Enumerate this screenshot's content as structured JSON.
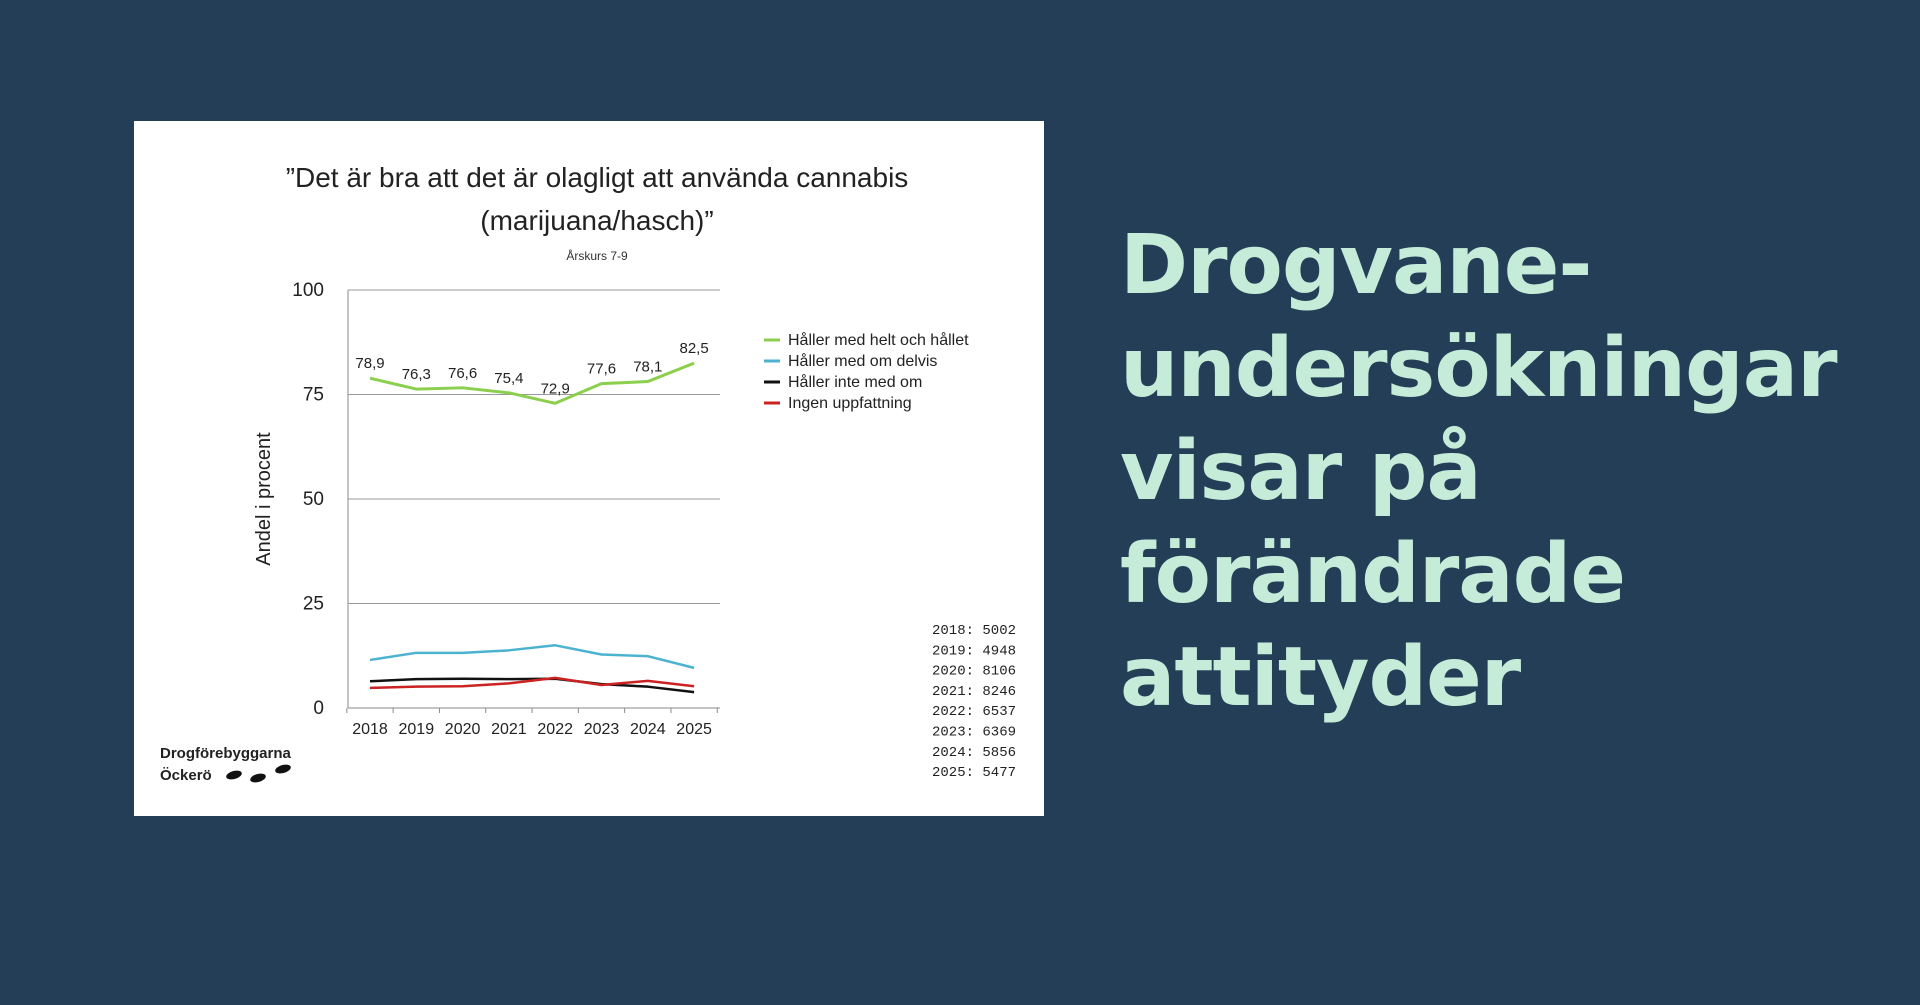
{
  "headline": {
    "lines": [
      "Drogvane-",
      "undersökningar",
      "visar på",
      "förändrade",
      "attityder"
    ]
  },
  "colors": {
    "background": "#233e56",
    "headline": "#c4ecd8",
    "card": "#ffffff"
  },
  "logo": {
    "line1": "Drogförebyggarna",
    "line2": "Öckerö"
  },
  "chart_data": {
    "type": "line",
    "title_lines": [
      "”Det är bra att det är olagligt att använda cannabis",
      "(marijuana/hasch)”"
    ],
    "subtitle": "Årskurs 7-9",
    "ylabel": "Andel i procent",
    "xlabel": "",
    "ylim": [
      0,
      100
    ],
    "yticks": [
      0,
      25,
      50,
      75,
      100
    ],
    "grid": true,
    "legend_position": "right",
    "categories": [
      "2018",
      "2019",
      "2020",
      "2021",
      "2022",
      "2023",
      "2024",
      "2025"
    ],
    "series": [
      {
        "name": "Håller med helt och hållet",
        "color": "#8ccf4e",
        "values": [
          78.9,
          76.3,
          76.6,
          75.4,
          72.9,
          77.6,
          78.1,
          82.5
        ],
        "labels": [
          "78,9",
          "76,3",
          "76,6",
          "75,4",
          "72,9",
          "77,6",
          "78,1",
          "82,5"
        ]
      },
      {
        "name": "Håller med om delvis",
        "color": "#4bb3cf",
        "values": [
          11.5,
          13.2,
          13.2,
          13.8,
          15.0,
          12.8,
          12.4,
          9.6
        ]
      },
      {
        "name": "Håller inte med om",
        "color": "#111111",
        "values": [
          6.4,
          6.9,
          7.0,
          6.9,
          7.0,
          5.7,
          5.1,
          3.8
        ]
      },
      {
        "name": "Ingen uppfattning",
        "color": "#cc2222",
        "values": [
          4.8,
          5.1,
          5.2,
          5.9,
          7.2,
          5.5,
          6.5,
          5.2
        ]
      }
    ],
    "sample_sizes": [
      "2018: 5002",
      "2019: 4948",
      "2020: 8106",
      "2021: 8246",
      "2022: 6537",
      "2023: 6369",
      "2024: 5856",
      "2025: 5477"
    ]
  }
}
